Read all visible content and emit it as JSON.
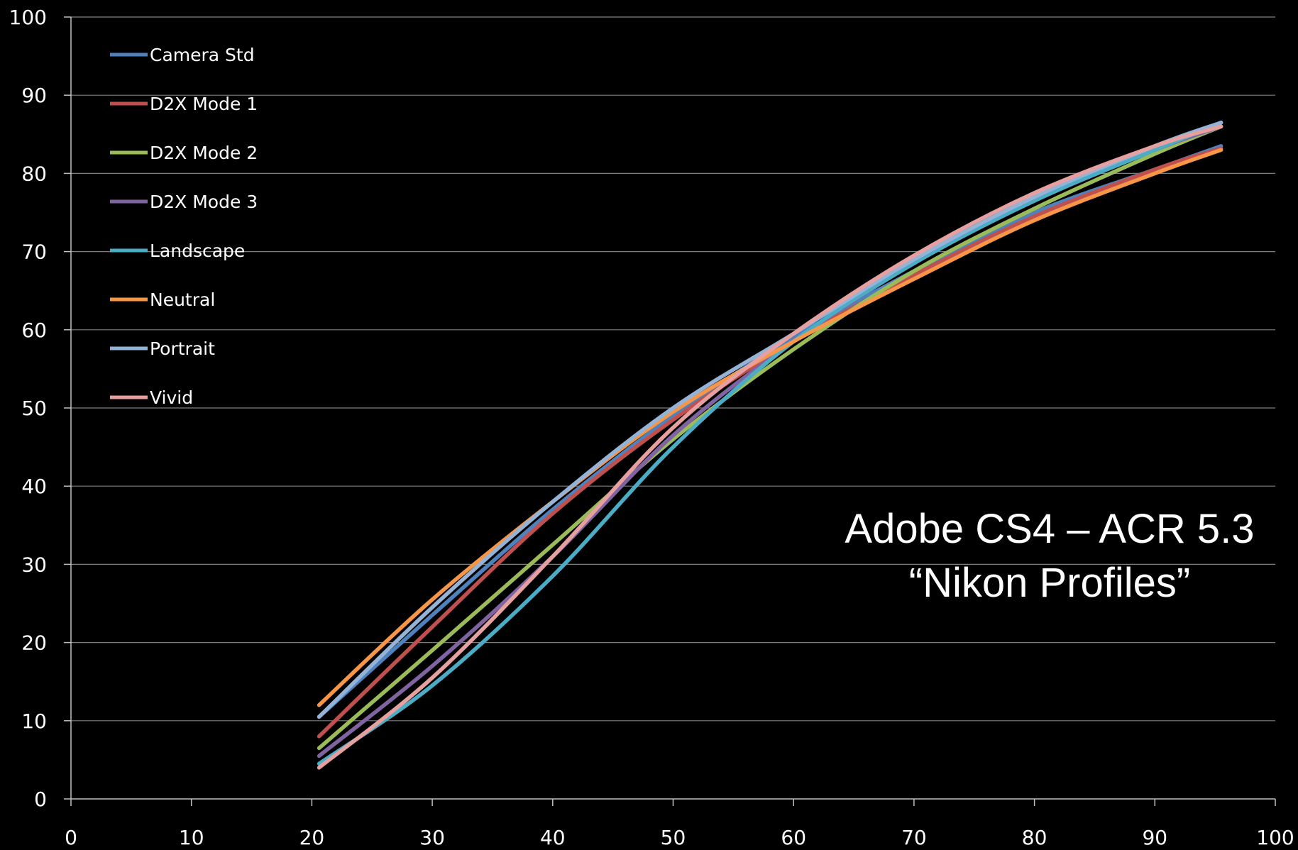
{
  "chart_data": {
    "type": "line",
    "title": "",
    "xlabel": "",
    "ylabel": "",
    "xlim": [
      0,
      100
    ],
    "ylim": [
      0,
      100
    ],
    "x_ticks": [
      0,
      10,
      20,
      30,
      40,
      50,
      60,
      70,
      80,
      90,
      100
    ],
    "y_ticks": [
      0,
      10,
      20,
      30,
      40,
      50,
      60,
      70,
      80,
      90,
      100
    ],
    "grid": "horizontal",
    "legend_position": "top-left",
    "annotation": [
      "Adobe CS4 – ACR 5.3",
      "“Nikon Profiles”"
    ],
    "x": [
      20.6,
      30,
      40,
      50,
      60,
      70,
      80,
      90,
      95.5
    ],
    "series": [
      {
        "name": "Camera Std",
        "color": "#4f81bd",
        "values": [
          10.5,
          23.5,
          37.0,
          49.0,
          59.0,
          67.5,
          75.0,
          80.5,
          83.5
        ]
      },
      {
        "name": "D2X Mode 1",
        "color": "#c0504d",
        "values": [
          8.0,
          22.0,
          36.5,
          48.5,
          58.5,
          67.0,
          74.5,
          80.5,
          83.2
        ]
      },
      {
        "name": "D2X Mode 2",
        "color": "#9bbb59",
        "values": [
          6.5,
          19.0,
          32.5,
          46.0,
          57.5,
          67.5,
          75.5,
          82.5,
          86.0
        ]
      },
      {
        "name": "D2X Mode 3",
        "color": "#8064a2",
        "values": [
          5.5,
          17.0,
          31.0,
          46.5,
          58.5,
          68.5,
          76.5,
          83.0,
          86.0
        ]
      },
      {
        "name": "Landscape",
        "color": "#4bacc6",
        "values": [
          4.5,
          14.5,
          28.5,
          45.0,
          58.5,
          68.5,
          76.5,
          83.0,
          86.5
        ]
      },
      {
        "name": "Neutral",
        "color": "#f79646",
        "values": [
          12.0,
          25.5,
          38.0,
          49.5,
          58.5,
          66.5,
          74.0,
          80.0,
          83.0
        ]
      },
      {
        "name": "Portrait",
        "color": "#95b3d7",
        "values": [
          10.5,
          24.5,
          38.0,
          50.0,
          59.5,
          69.0,
          77.0,
          83.5,
          86.5
        ]
      },
      {
        "name": "Vivid",
        "color": "#e6a0a0",
        "values": [
          4.0,
          15.5,
          31.0,
          47.5,
          59.5,
          69.5,
          77.5,
          83.5,
          86.0
        ]
      }
    ]
  }
}
